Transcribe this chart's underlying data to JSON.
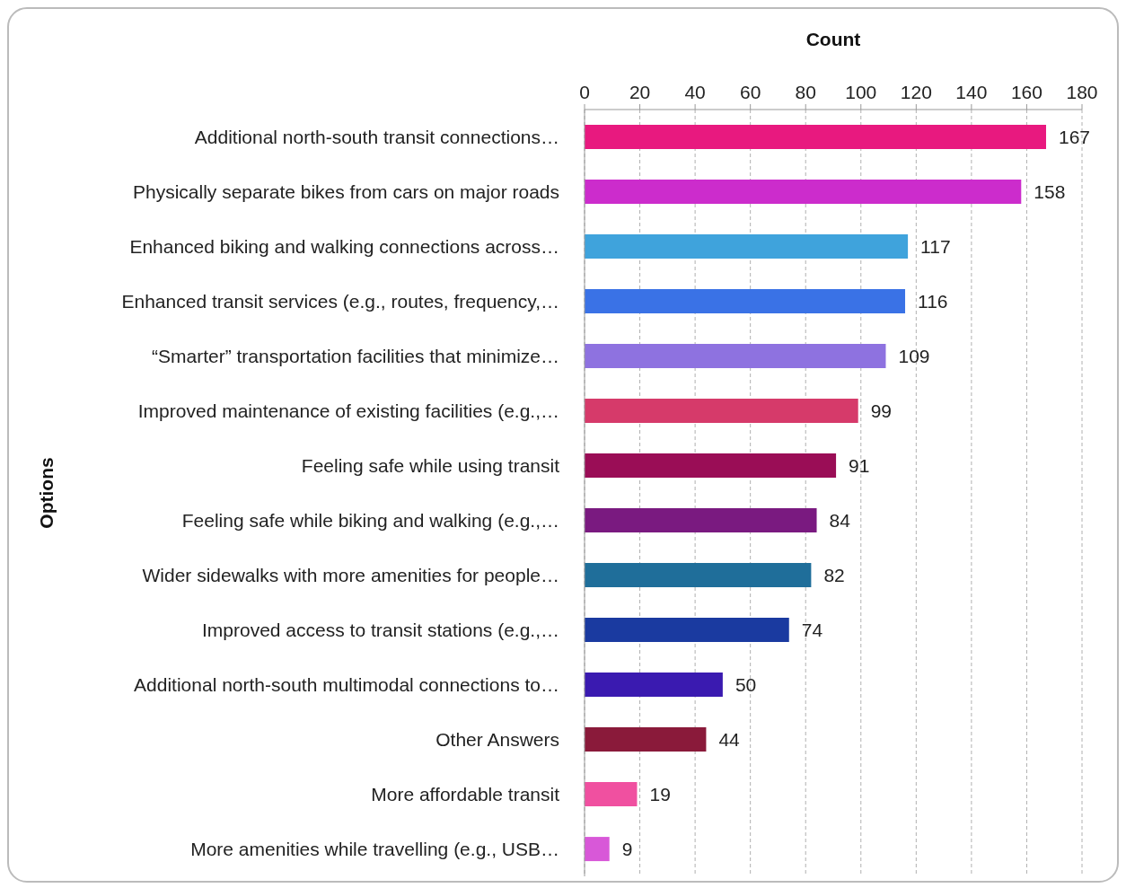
{
  "chart_data": {
    "type": "bar",
    "orientation": "horizontal",
    "xlabel": "Count",
    "ylabel": "Options",
    "categories": [
      "Additional north-south transit connections…",
      "Physically separate bikes from cars on major roads",
      "Enhanced biking and walking connections across…",
      "Enhanced transit services (e.g., routes, frequency,…",
      "“Smarter” transportation facilities that minimize…",
      "Improved maintenance of existing facilities (e.g.,…",
      "Feeling safe while using transit",
      "Feeling safe while biking and walking (e.g.,…",
      "Wider sidewalks with more amenities for people…",
      "Improved access to transit stations (e.g.,…",
      "Additional north-south multimodal connections to…",
      "Other Answers",
      "More affordable transit",
      "More amenities while travelling (e.g., USB…"
    ],
    "values": [
      167,
      158,
      117,
      116,
      109,
      99,
      91,
      84,
      82,
      74,
      50,
      44,
      19,
      9
    ],
    "colors": [
      "#e8197f",
      "#cc2ccc",
      "#3fa3dc",
      "#3a72e6",
      "#8e72e0",
      "#d63a6a",
      "#9a0d56",
      "#7a1a80",
      "#1f6e9a",
      "#1a3aa0",
      "#3a1ab0",
      "#8a1a3a",
      "#f050a0",
      "#d858d8"
    ],
    "xlim": [
      0,
      180
    ],
    "xticks": [
      0,
      20,
      40,
      60,
      80,
      100,
      120,
      140,
      160,
      180
    ],
    "grid": "x",
    "data_labels": true
  }
}
